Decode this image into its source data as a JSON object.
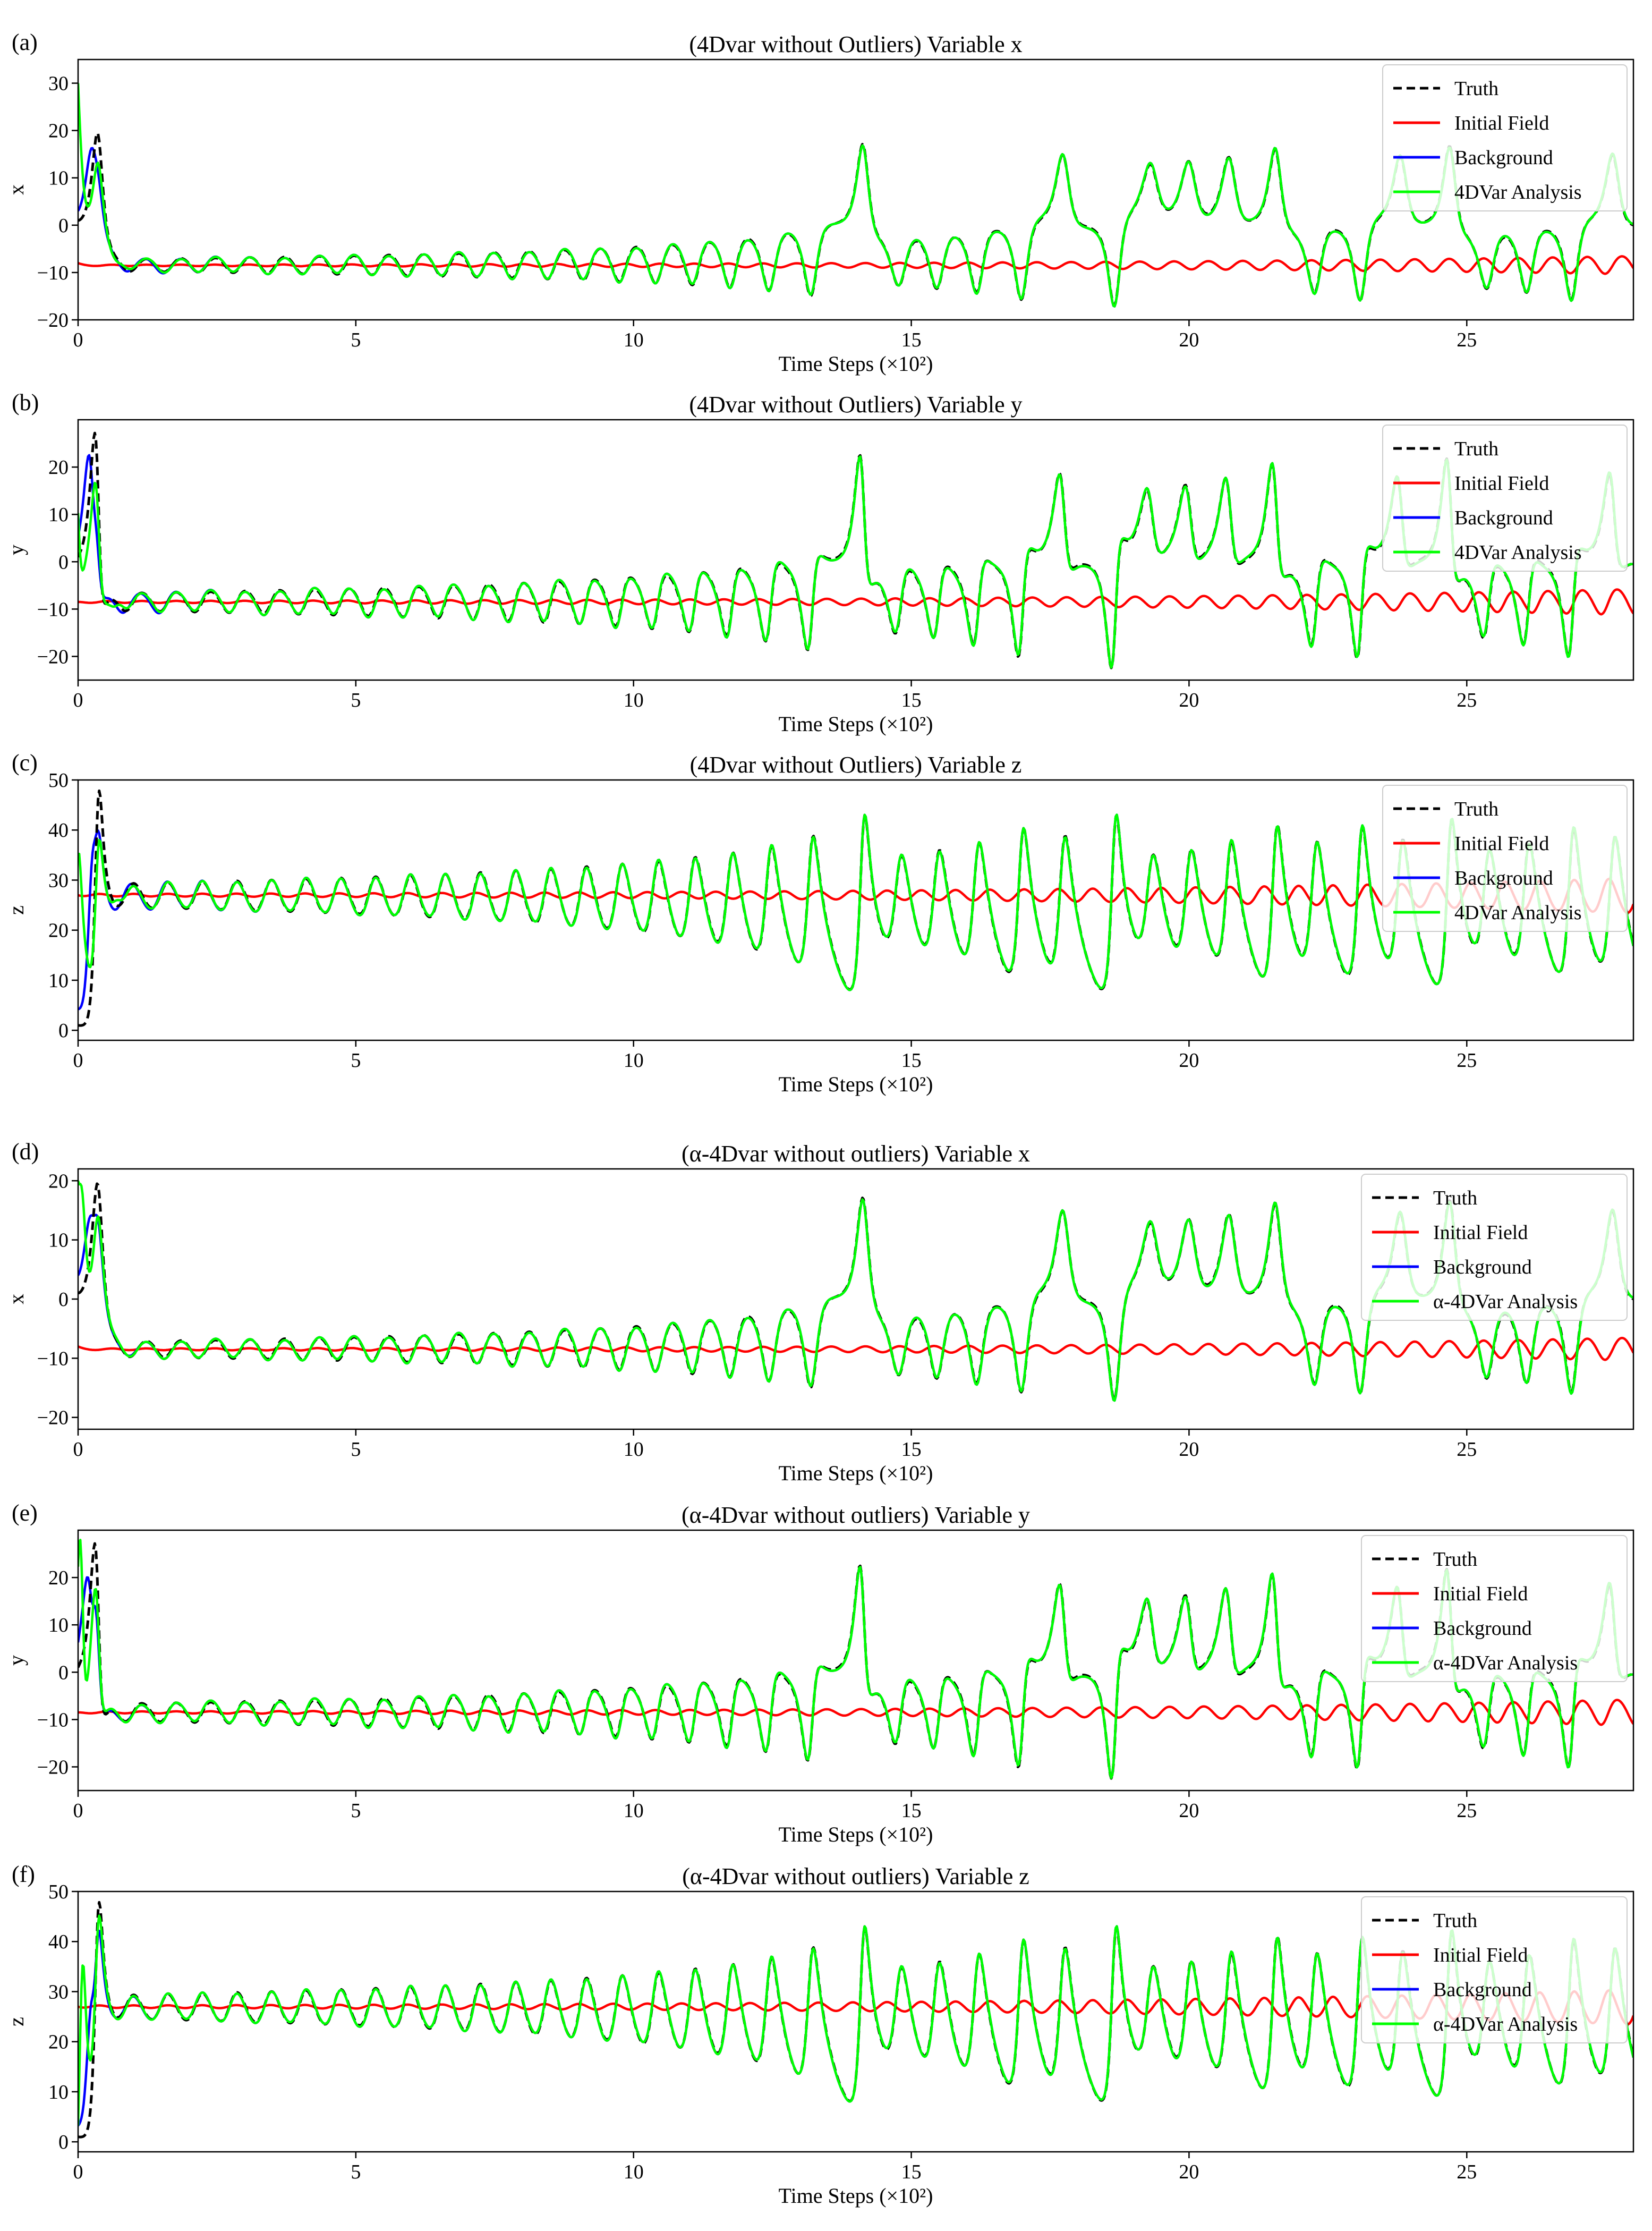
{
  "figure": {
    "background": "#ffffff"
  },
  "styles": {
    "truth": {
      "color": "#000000",
      "dash": true
    },
    "initial": {
      "color": "#ff0000"
    },
    "background": {
      "color": "#0000ff"
    },
    "analysis": {
      "color": "#00ff00"
    }
  },
  "chart_data": [
    {
      "panel_label": "(a)",
      "type": "line",
      "title": "(4Dvar without Outliers) Variable x",
      "xlabel": "Time Steps (×10²)",
      "ylabel": "x",
      "xlim": [
        0,
        28
      ],
      "ylim": [
        -20,
        35
      ],
      "xticks": [
        0,
        5,
        10,
        15,
        20,
        25
      ],
      "yticks": [
        -20,
        -10,
        0,
        10,
        20,
        30
      ],
      "variable": "x",
      "method": "4dvar",
      "legend": {
        "position": "top-right",
        "entries": [
          "Truth",
          "Initial Field",
          "Background",
          "4DVar Analysis"
        ]
      }
    },
    {
      "panel_label": "(b)",
      "type": "line",
      "title": "(4Dvar without Outliers) Variable y",
      "xlabel": "Time Steps (×10²)",
      "ylabel": "y",
      "xlim": [
        0,
        28
      ],
      "ylim": [
        -25,
        30
      ],
      "xticks": [
        0,
        5,
        10,
        15,
        20,
        25
      ],
      "yticks": [
        -20,
        -10,
        0,
        10,
        20
      ],
      "variable": "y",
      "method": "4dvar",
      "legend": {
        "position": "top-right",
        "entries": [
          "Truth",
          "Initial Field",
          "Background",
          "4DVar Analysis"
        ]
      }
    },
    {
      "panel_label": "(c)",
      "type": "line",
      "title": "(4Dvar without Outliers) Variable z",
      "xlabel": "Time Steps (×10²)",
      "ylabel": "z",
      "xlim": [
        0,
        28
      ],
      "ylim": [
        -2,
        50
      ],
      "xticks": [
        0,
        5,
        10,
        15,
        20,
        25
      ],
      "yticks": [
        0,
        10,
        20,
        30,
        40,
        50
      ],
      "variable": "z",
      "method": "4dvar",
      "legend": {
        "position": "top-right",
        "entries": [
          "Truth",
          "Initial Field",
          "Background",
          "4DVar Analysis"
        ]
      }
    },
    {
      "panel_label": "(d)",
      "type": "line",
      "title": "(α-4Dvar without outliers) Variable x",
      "xlabel": "Time Steps (×10²)",
      "ylabel": "x",
      "xlim": [
        0,
        28
      ],
      "ylim": [
        -22,
        22
      ],
      "xticks": [
        0,
        5,
        10,
        15,
        20,
        25
      ],
      "yticks": [
        -20,
        -10,
        0,
        10,
        20
      ],
      "variable": "x",
      "method": "alpha",
      "legend": {
        "position": "top-right",
        "entries": [
          "Truth",
          "Initial Field",
          "Background",
          "α-4DVar Analysis"
        ]
      }
    },
    {
      "panel_label": "(e)",
      "type": "line",
      "title": "(α-4Dvar without outliers) Variable y",
      "xlabel": "Time Steps (×10²)",
      "ylabel": "y",
      "xlim": [
        0,
        28
      ],
      "ylim": [
        -25,
        30
      ],
      "xticks": [
        0,
        5,
        10,
        15,
        20,
        25
      ],
      "yticks": [
        -20,
        -10,
        0,
        10,
        20
      ],
      "variable": "y",
      "method": "alpha",
      "legend": {
        "position": "top-right",
        "entries": [
          "Truth",
          "Initial Field",
          "Background",
          "α-4DVar Analysis"
        ]
      }
    },
    {
      "panel_label": "(f)",
      "type": "line",
      "title": "(α-4Dvar without outliers) Variable z",
      "xlabel": "Time Steps (×10²)",
      "ylabel": "z",
      "xlim": [
        0,
        28
      ],
      "ylim": [
        -2,
        50
      ],
      "xticks": [
        0,
        5,
        10,
        15,
        20,
        25
      ],
      "yticks": [
        0,
        10,
        20,
        30,
        40,
        50
      ],
      "variable": "z",
      "method": "alpha",
      "legend": {
        "position": "top-right",
        "entries": [
          "Truth",
          "Initial Field",
          "Background",
          "α-4DVar Analysis"
        ]
      }
    }
  ]
}
